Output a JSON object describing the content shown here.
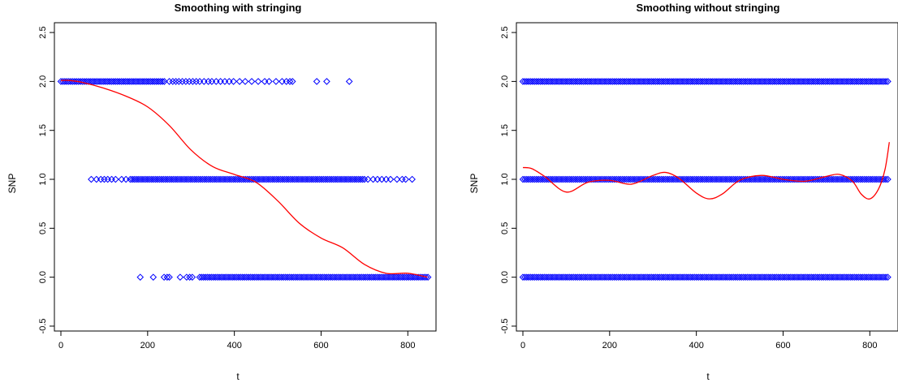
{
  "chart_data": [
    {
      "type": "scatter",
      "title": "Smoothing with stringing",
      "xlabel": "t",
      "ylabel": "SNP",
      "xlim": [
        -15,
        865
      ],
      "ylim": [
        -0.55,
        2.6
      ],
      "xticks": [
        "0",
        "200",
        "400",
        "600",
        "800"
      ],
      "yticks": [
        "-0.5",
        "0.0",
        "0.5",
        "1.0",
        "1.5",
        "2.0",
        "2.5"
      ],
      "grid": false,
      "point_color": "#0000ff",
      "line_color": "#ff0000",
      "point_series": [
        {
          "y": 2,
          "dense": [
            [
              0,
              240
            ]
          ],
          "sparse": [
            250,
            258,
            265,
            272,
            280,
            288,
            296,
            304,
            312,
            320,
            330,
            340,
            348,
            358,
            368,
            378,
            388,
            398,
            412,
            425,
            440,
            455,
            470,
            480,
            496,
            510,
            520,
            528,
            534,
            590,
            613,
            665
          ]
        },
        {
          "y": 1,
          "dense": [
            [
              160,
              700
            ]
          ],
          "sparse": [
            70,
            82,
            92,
            100,
            108,
            117,
            126,
            140,
            150,
            708,
            720,
            730,
            740,
            750,
            760,
            775,
            787,
            795,
            810
          ]
        },
        {
          "y": 0,
          "dense": [
            [
              320,
              847
            ]
          ],
          "sparse": [
            183,
            213,
            238,
            245,
            250,
            275,
            290,
            297,
            303
          ]
        }
      ],
      "smooth_curve": {
        "x": [
          0,
          20,
          50,
          100,
          150,
          200,
          250,
          300,
          350,
          400,
          450,
          500,
          550,
          600,
          650,
          700,
          750,
          800,
          845
        ],
        "y": [
          2.01,
          2.01,
          1.99,
          1.93,
          1.85,
          1.74,
          1.55,
          1.3,
          1.13,
          1.05,
          0.97,
          0.78,
          0.55,
          0.4,
          0.3,
          0.13,
          0.04,
          0.04,
          0.0
        ]
      }
    },
    {
      "type": "scatter",
      "title": "Smoothing without stringing",
      "xlabel": "t",
      "ylabel": "SNP",
      "xlim": [
        -15,
        865
      ],
      "ylim": [
        -0.55,
        2.6
      ],
      "xticks": [
        "0",
        "200",
        "400",
        "600",
        "800"
      ],
      "yticks": [
        "-0.5",
        "0.0",
        "0.5",
        "1.0",
        "1.5",
        "2.0",
        "2.5"
      ],
      "grid": false,
      "point_color": "#0000ff",
      "line_color": "#ff0000",
      "point_series": [
        {
          "y": 2,
          "dense": [
            [
              0,
              845
            ]
          ],
          "sparse": []
        },
        {
          "y": 1,
          "dense": [
            [
              0,
              845
            ]
          ],
          "sparse": []
        },
        {
          "y": 0,
          "dense": [
            [
              0,
              845
            ]
          ],
          "sparse": []
        }
      ],
      "smooth_curve": {
        "x": [
          0,
          20,
          50,
          100,
          150,
          200,
          250,
          300,
          330,
          360,
          400,
          430,
          460,
          500,
          550,
          600,
          650,
          700,
          730,
          760,
          780,
          800,
          820,
          835,
          845
        ],
        "y": [
          1.12,
          1.11,
          1.03,
          0.87,
          0.97,
          0.99,
          0.95,
          1.04,
          1.07,
          1.01,
          0.86,
          0.8,
          0.85,
          0.99,
          1.04,
          1.0,
          0.98,
          1.03,
          1.05,
          0.98,
          0.85,
          0.8,
          0.9,
          1.1,
          1.38
        ]
      }
    }
  ]
}
